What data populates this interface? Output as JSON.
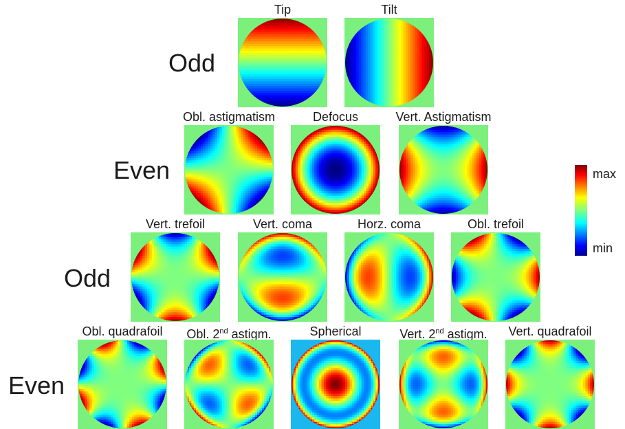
{
  "rows": [
    {
      "label": "Odd",
      "modes": [
        {
          "id": "tip",
          "title": "Tip",
          "kind": "tip"
        },
        {
          "id": "tilt",
          "title": "Tilt",
          "kind": "tilt"
        }
      ]
    },
    {
      "label": "Even",
      "modes": [
        {
          "id": "obl-astigmatism",
          "title": "Obl. astigmatism",
          "kind": "obl_astig"
        },
        {
          "id": "defocus",
          "title": "Defocus",
          "kind": "defocus"
        },
        {
          "id": "vert-astigmatism",
          "title": "Vert. Astigmatism",
          "kind": "vert_astig"
        }
      ]
    },
    {
      "label": "Odd",
      "modes": [
        {
          "id": "vert-trefoil",
          "title": "Vert. trefoil",
          "kind": "vert_trefoil"
        },
        {
          "id": "vert-coma",
          "title": "Vert. coma",
          "kind": "vert_coma"
        },
        {
          "id": "horz-coma",
          "title": "Horz. coma",
          "kind": "horz_coma"
        },
        {
          "id": "obl-trefoil",
          "title": "Obl. trefoil",
          "kind": "obl_trefoil"
        }
      ]
    },
    {
      "label": "Even",
      "modes": [
        {
          "id": "obl-quadrafoil",
          "title": "Obl. quadrafoil",
          "kind": "obl_quad"
        },
        {
          "id": "obl-2nd-astigm",
          "title": "Obl. 2nd astigm.",
          "title_pre": "Obl. 2",
          "title_sup": "nd",
          "title_post": " astigm.",
          "kind": "obl_2astig"
        },
        {
          "id": "spherical",
          "title": "Spherical",
          "kind": "spherical",
          "background": "#1ab8ef"
        },
        {
          "id": "vert-2nd-astigm",
          "title": "Vert. 2nd astigm.",
          "title_pre": "Vert. 2",
          "title_sup": "nd",
          "title_post": " astigm.",
          "kind": "vert_2astig"
        },
        {
          "id": "vert-quadrafoil",
          "title": "Vert. quadrafoil",
          "kind": "vert_quad"
        }
      ]
    }
  ],
  "colorbar": {
    "max_label": "max",
    "min_label": "min"
  },
  "colors": {
    "tile_background": "#7cf07c",
    "page_background": "#ffffff"
  }
}
